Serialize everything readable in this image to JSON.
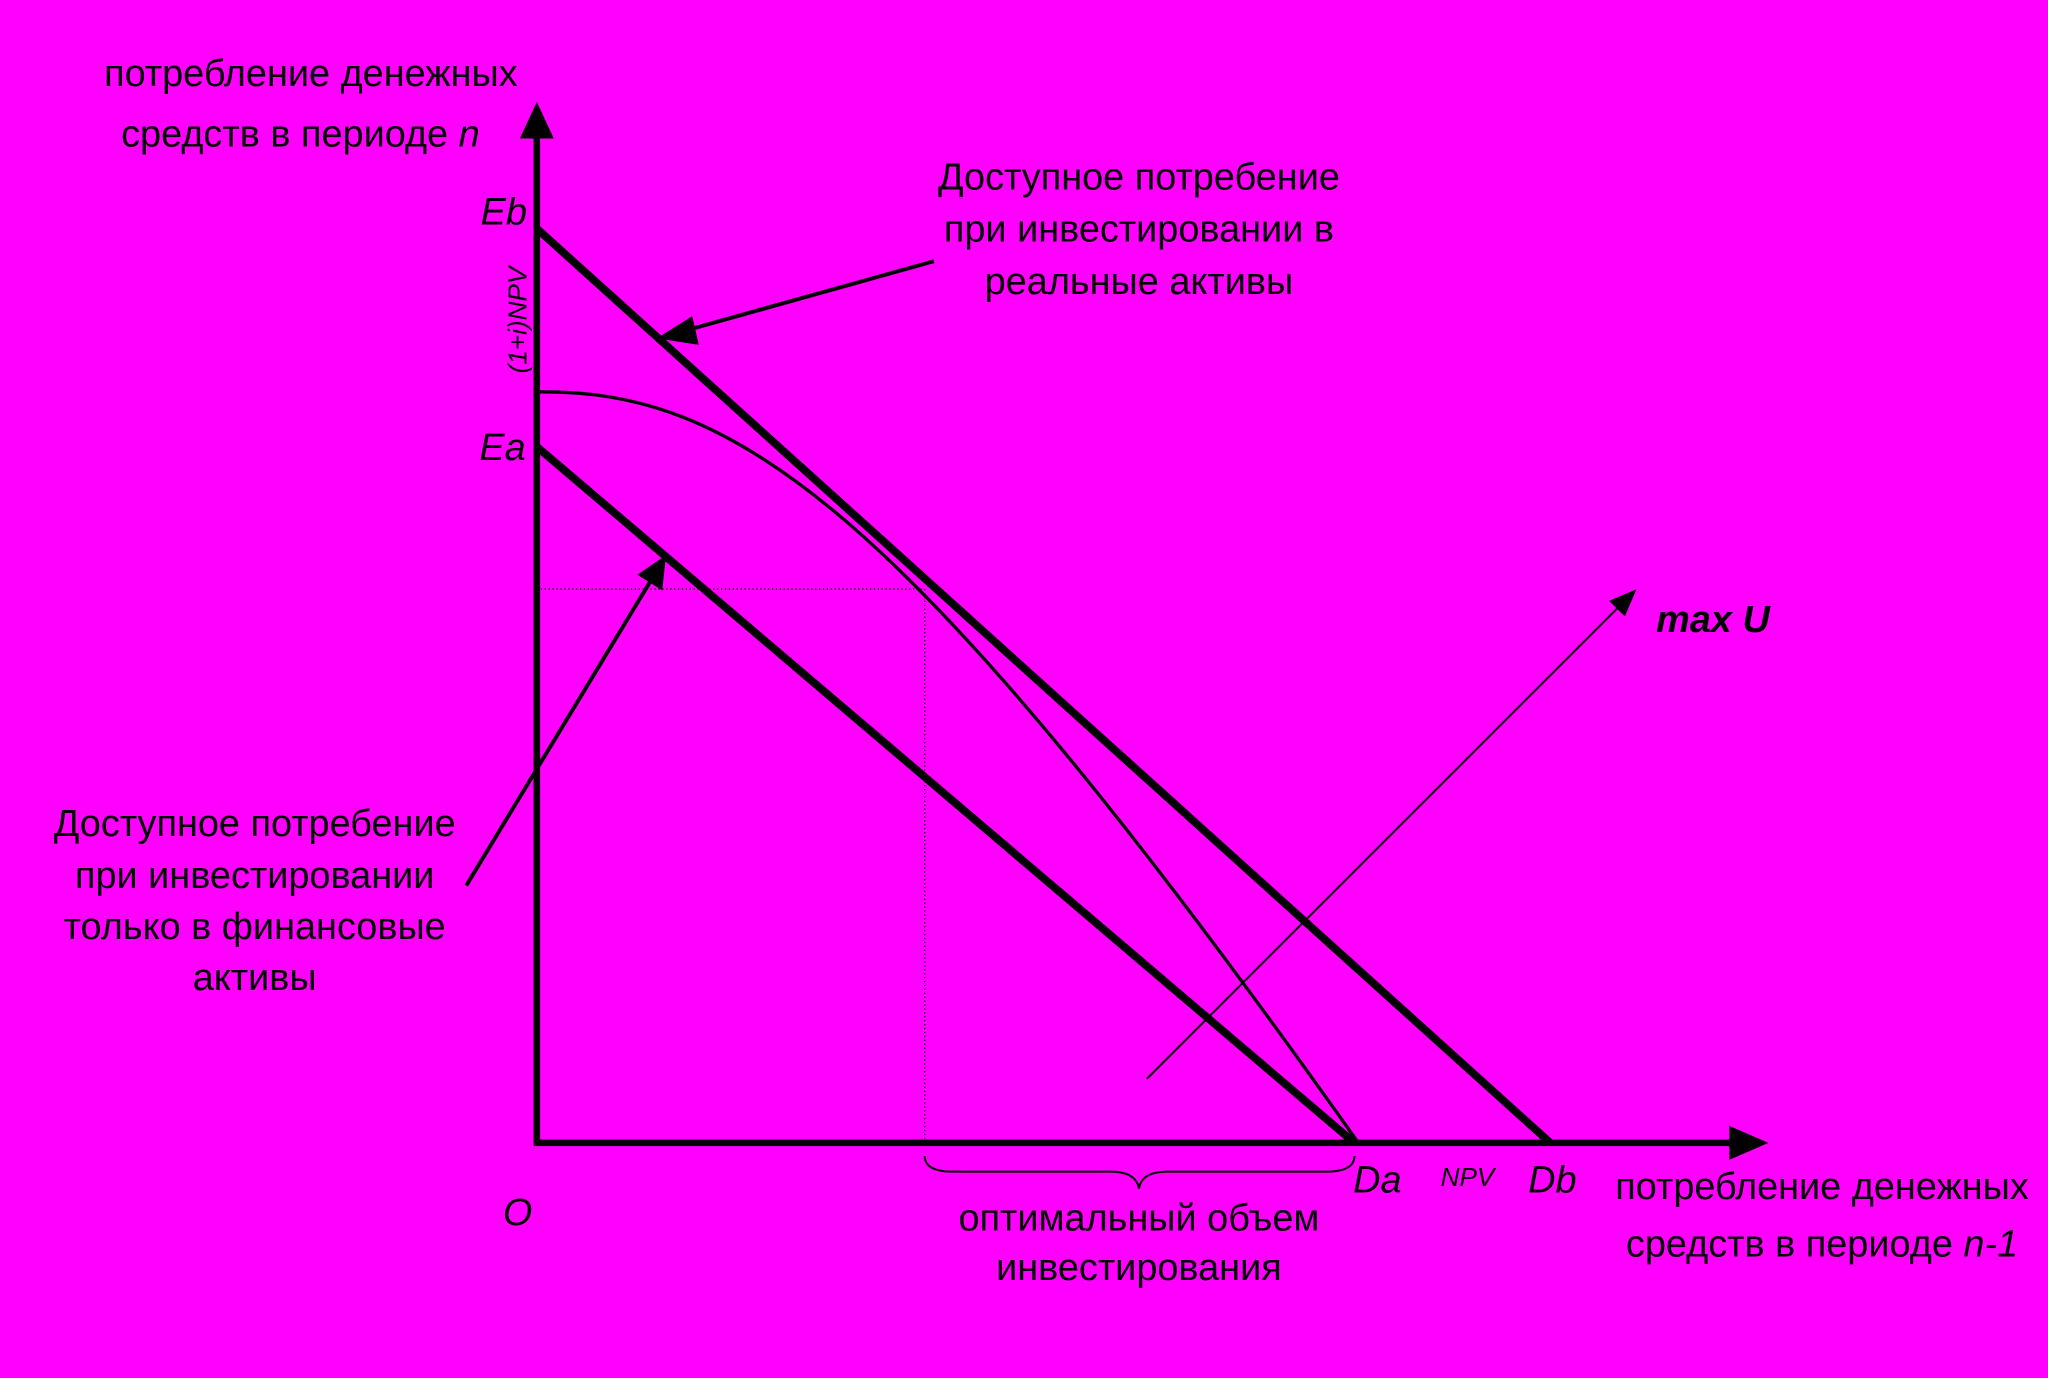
{
  "y_axis": {
    "label_line1": "потребление денежных",
    "label_line2": "средств в периоде",
    "label_var": "n"
  },
  "x_axis": {
    "label_line1": "потребление денежных",
    "label_line2": "средств в периоде",
    "label_var": "n-1"
  },
  "points": {
    "origin": "O",
    "eb": "Eb",
    "ea": "Ea",
    "da": "Da",
    "db": "Db",
    "npv": "NPV",
    "npv_future": "(1+i)NPV",
    "max_u": "max U"
  },
  "annotations": {
    "real_assets": [
      "Доступное потребение",
      "при инвестировании в",
      "реальные активы"
    ],
    "financial_assets": [
      "Доступное потребение",
      "при инвестировании",
      "только в финансовые",
      "активы"
    ],
    "optimal": [
      "оптимальный объем",
      "инвестирования"
    ]
  }
}
